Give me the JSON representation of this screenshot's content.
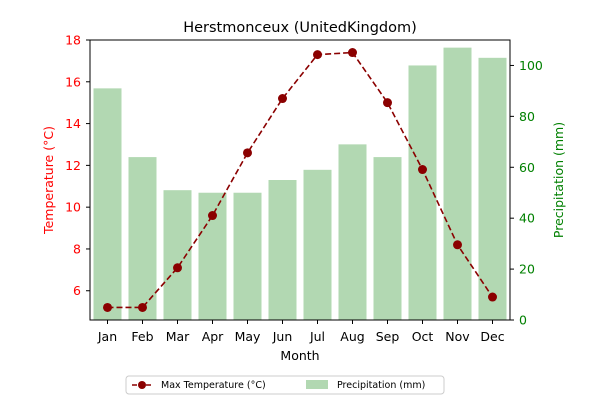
{
  "chart_data": {
    "type": "bar+line",
    "title": "Herstmonceux (UnitedKingdom)",
    "xlabel": "Month",
    "categories": [
      "Jan",
      "Feb",
      "Mar",
      "Apr",
      "May",
      "Jun",
      "Jul",
      "Aug",
      "Sep",
      "Oct",
      "Nov",
      "Dec"
    ],
    "left_axis": {
      "label": "Temperature (°C)",
      "color": "#ff0000",
      "ylim": [
        4.6,
        18
      ],
      "ticks": [
        6,
        8,
        10,
        12,
        14,
        16,
        18
      ]
    },
    "right_axis": {
      "label": "Precipitation (mm)",
      "color": "#008000",
      "ylim": [
        0,
        110
      ],
      "ticks": [
        0,
        20,
        40,
        60,
        80,
        100
      ]
    },
    "series": [
      {
        "name": "Max Temperature (°C)",
        "type": "line",
        "axis": "left",
        "color": "#8b0000",
        "style": "dashed",
        "marker": "circle",
        "values": [
          5.2,
          5.2,
          7.1,
          9.6,
          12.6,
          15.2,
          17.3,
          17.4,
          15.0,
          11.8,
          8.2,
          5.7
        ]
      },
      {
        "name": "Precipitation (mm)",
        "type": "bar",
        "axis": "right",
        "color": "#b2d8b2",
        "values": [
          91,
          64,
          51,
          50,
          50,
          55,
          59,
          69,
          64,
          100,
          107,
          103
        ]
      }
    ],
    "legend_position": "bottom-center"
  }
}
